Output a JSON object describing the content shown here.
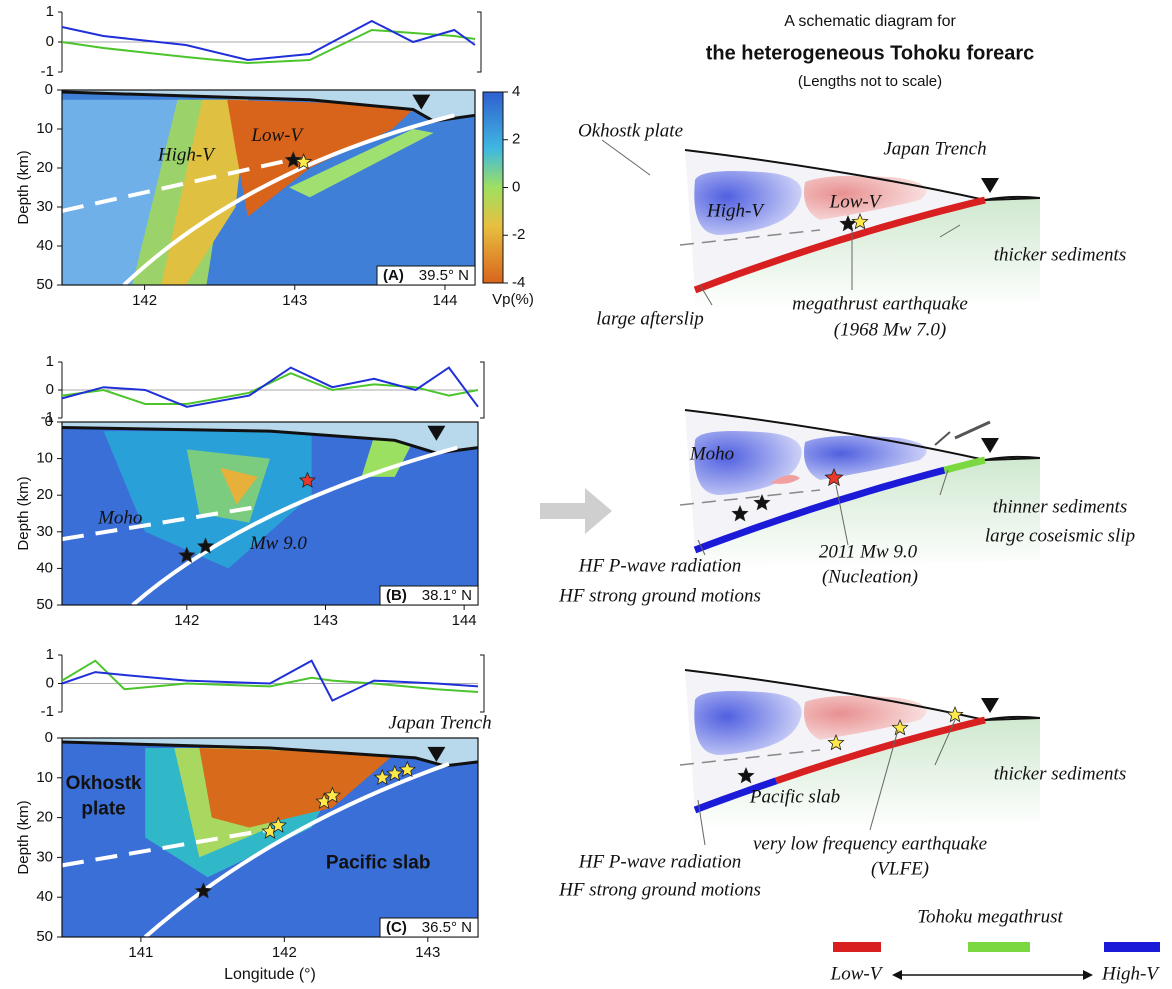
{
  "figure": {
    "depth_axis_label": "Depth (km)",
    "x_axis_label": "Longitude (°)",
    "colorbar": {
      "label": "Vp(%)",
      "lim": [
        -4,
        4
      ],
      "ticks": [
        4,
        2,
        0,
        -2,
        -4
      ]
    },
    "panels": [
      {
        "id": "(A)",
        "latitude": "39.5° N",
        "xlim": [
          141.45,
          144.2
        ],
        "xticks": [
          142,
          143,
          144
        ],
        "depth_ylim": [
          0,
          50
        ],
        "depth_yticks": [
          0,
          10,
          20,
          30,
          40,
          50
        ],
        "profile_ylim": [
          -1,
          1
        ],
        "profile_yticks": [
          -1,
          0,
          1
        ],
        "labels": [
          "High-V",
          "Low-V"
        ]
      },
      {
        "id": "(B)",
        "latitude": "38.1° N",
        "xlim": [
          141.1,
          144.1
        ],
        "xticks": [
          142,
          143,
          144
        ],
        "depth_ylim": [
          0,
          50
        ],
        "depth_yticks": [
          0,
          10,
          20,
          30,
          40,
          50
        ],
        "profile_ylim": [
          -1,
          1
        ],
        "profile_yticks": [
          -1,
          0,
          1
        ],
        "labels": [
          "Moho",
          "Mw 9.0"
        ]
      },
      {
        "id": "(C)",
        "latitude": "36.5° N",
        "xlim": [
          140.45,
          143.35
        ],
        "xticks": [
          141,
          142,
          143
        ],
        "depth_ylim": [
          0,
          50
        ],
        "depth_yticks": [
          0,
          10,
          20,
          30,
          40,
          50
        ],
        "profile_ylim": [
          -1,
          1
        ],
        "profile_yticks": [
          -1,
          0,
          1
        ],
        "labels": [
          "Japan Trench",
          "Okhostk",
          "plate",
          "Pacific slab"
        ]
      }
    ]
  },
  "schematic": {
    "title": "A schematic diagram for",
    "subtitle": "the heterogeneous Tohoku forearc",
    "note": "(Lengths not to scale)",
    "diagrams": [
      {
        "labels": [
          "Okhostk plate",
          "Japan Trench",
          "High-V",
          "Low-V",
          "thicker sediments",
          "megathrust earthquake",
          "(1968 Mw 7.0)",
          "large afterslip"
        ]
      },
      {
        "labels": [
          "Moho",
          "thinner sediments",
          "large coseismic slip",
          "2011 Mw 9.0",
          "(Nucleation)",
          "HF P-wave radiation",
          "HF strong ground motions"
        ]
      },
      {
        "labels": [
          "Pacific slab",
          "thicker sediments",
          "very low frequency earthquake",
          "(VLFE)",
          "HF P-wave radiation",
          "HF strong ground motions"
        ]
      }
    ],
    "legend": {
      "title": "Tohoku megathrust",
      "low": "Low-V",
      "high": "High-V"
    }
  }
}
